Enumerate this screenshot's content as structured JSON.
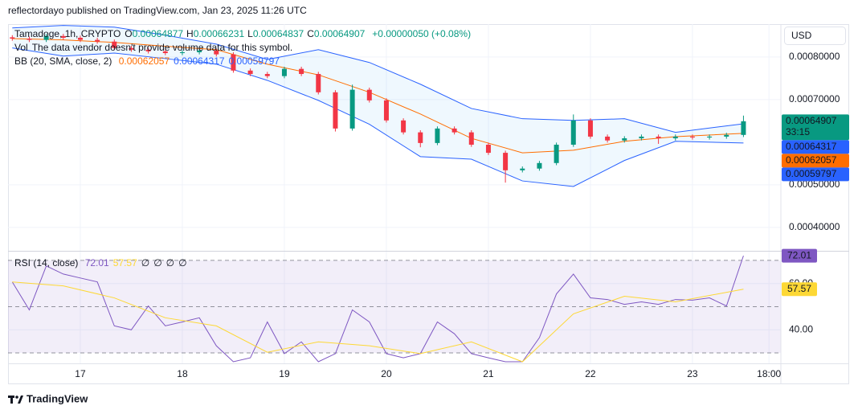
{
  "header": {
    "published": "reflectordayo published on TradingView.com, Jan 23, 2025 11:26 UTC",
    "brand": "TradingView",
    "currency": "USD",
    "countdown": "33:15"
  },
  "chart_data": [
    {
      "type": "candlestick",
      "symbol": "Tamadoge, 1h, CRYPTO",
      "ohlc": [
        {
          "label": "O",
          "value": 0.00064877
        },
        {
          "label": "H",
          "value": 0.00066231
        },
        {
          "label": "L",
          "value": 0.00064837
        },
        {
          "label": "C",
          "value": 0.00064907
        }
      ],
      "change": "+0.00000050 (+0.08%)",
      "volume_label": "Vol",
      "volume_note": "The data vendor doesn't provide volume data for this symbol.",
      "up_color": "#089981",
      "down_color": "#f23645",
      "x": [
        -16,
        -12,
        -8,
        -4,
        0,
        4,
        8,
        12,
        16,
        20,
        24,
        28,
        32,
        36,
        40,
        44,
        48,
        52,
        56,
        60,
        64,
        68,
        72,
        76,
        80,
        84,
        88,
        92,
        96,
        100,
        104,
        108,
        112,
        116,
        120,
        124,
        128,
        132,
        136,
        140,
        144,
        148,
        152,
        156
      ],
      "open": [
        0.000846,
        0.000843,
        0.00084,
        0.000849,
        0.000845,
        0.00084,
        0.000836,
        0.000821,
        0.000817,
        0.000813,
        0.000809,
        0.000811,
        0.000815,
        0.000806,
        0.000768,
        0.00076,
        0.000755,
        0.000772,
        0.00076,
        0.000717,
        0.000632,
        0.000723,
        0.000698,
        0.000651,
        0.000623,
        0.000598,
        0.000632,
        0.000623,
        0.000594,
        0.000575,
        0.000534,
        0.000538,
        0.000551,
        0.000594,
        0.000651,
        0.000613,
        0.000604,
        0.000609,
        0.000613,
        0.000609,
        0.000613,
        0.000611,
        0.000613,
        0.000617
      ],
      "high": [
        0.000851,
        0.000848,
        0.000854,
        0.000854,
        0.00085,
        0.000845,
        0.000841,
        0.000826,
        0.000822,
        0.000818,
        0.000816,
        0.00082,
        0.00082,
        0.000811,
        0.000773,
        0.000765,
        0.000777,
        0.000777,
        0.000765,
        0.000722,
        0.000735,
        0.000728,
        0.000703,
        0.000656,
        0.000628,
        0.000637,
        0.000637,
        0.000628,
        0.000599,
        0.00058,
        0.000543,
        0.000556,
        0.000599,
        0.000665,
        0.000656,
        0.000618,
        0.000614,
        0.000618,
        0.000618,
        0.000618,
        0.000618,
        0.000618,
        0.000622,
        0.00066231
      ],
      "low": [
        0.000838,
        0.000835,
        0.000835,
        0.00084,
        0.000835,
        0.000831,
        0.000816,
        0.000812,
        0.000808,
        0.000804,
        0.000804,
        0.000806,
        0.000801,
        0.000763,
        0.000755,
        0.00075,
        0.00075,
        0.000755,
        0.000712,
        0.000625,
        0.000627,
        0.000693,
        0.000646,
        0.000618,
        0.000588,
        0.000593,
        0.000618,
        0.000589,
        0.00057,
        0.000505,
        0.000529,
        0.000533,
        0.000546,
        0.000589,
        0.000608,
        0.000599,
        0.000599,
        0.000604,
        0.000596,
        0.000604,
        0.000606,
        0.000606,
        0.000608,
        0.000612
      ],
      "close": [
        0.000843,
        0.00084,
        0.000849,
        0.000845,
        0.00084,
        0.000836,
        0.000821,
        0.000817,
        0.000813,
        0.000809,
        0.000811,
        0.000815,
        0.000806,
        0.000768,
        0.00076,
        0.000755,
        0.000772,
        0.00076,
        0.000717,
        0.000632,
        0.000723,
        0.000698,
        0.000651,
        0.000623,
        0.000598,
        0.000632,
        0.000623,
        0.000594,
        0.000575,
        0.000534,
        0.000538,
        0.000551,
        0.000594,
        0.000651,
        0.000613,
        0.000604,
        0.000609,
        0.000613,
        0.000609,
        0.000613,
        0.000611,
        0.000613,
        0.000617,
        0.00064907
      ],
      "bb": {
        "label": "BB (20, SMA, close, 2)",
        "x": [
          -16,
          -4,
          8,
          20,
          32,
          44,
          56,
          68,
          80,
          92,
          104,
          116,
          128,
          140,
          156
        ],
        "basis": [
          0.000843,
          0.00084,
          0.000834,
          0.000825,
          0.000817,
          0.000783,
          0.000758,
          0.000717,
          0.000666,
          0.000609,
          0.000575,
          0.000581,
          0.000602,
          0.000613,
          0.00062057
        ],
        "upper": [
          0.000868,
          0.000874,
          0.00087,
          0.000851,
          0.00083,
          0.000794,
          0.000817,
          0.000787,
          0.000736,
          0.000679,
          0.000655,
          0.000651,
          0.000655,
          0.000623,
          0.00064317
        ],
        "lower": [
          0.000821,
          0.000802,
          0.000809,
          0.000796,
          0.000783,
          0.000745,
          0.000698,
          0.000642,
          0.000566,
          0.00056,
          0.000509,
          0.000496,
          0.000557,
          0.000602,
          0.00059797
        ],
        "basis_color": "#ff6d00",
        "band_color": "#2962ff",
        "fill_color": "#2196f3"
      },
      "xlim": [
        -17,
        164.8
      ],
      "ylim": [
        0.000345,
        0.000877
      ],
      "yticks": [
        {
          "value": 0.0004,
          "label": "0.00040000"
        },
        {
          "value": 0.0005,
          "label": "0.00050000"
        },
        {
          "value": 0.0007,
          "label": "0.00070000"
        },
        {
          "value": 0.0008,
          "label": "0.00080000"
        }
      ],
      "grid": true
    },
    {
      "type": "line",
      "title": "RSI (14, close)",
      "na_values": [
        "∅",
        "∅",
        "∅",
        "∅"
      ],
      "series": [
        {
          "color": "#7e57c2",
          "x": [
            -16,
            -12,
            -8,
            -4,
            0,
            4,
            8,
            12,
            16,
            20,
            24,
            28,
            32,
            36,
            40,
            44,
            48,
            52,
            56,
            60,
            64,
            68,
            72,
            76,
            80,
            84,
            88,
            92,
            96,
            100,
            104,
            108,
            112,
            116,
            120,
            124,
            128,
            132,
            136,
            140,
            144,
            148,
            152,
            156
          ],
          "values": [
            60.7,
            48.6,
            67.6,
            64.1,
            62.4,
            60.7,
            41.7,
            40,
            50.3,
            41.7,
            43.4,
            45.2,
            33.1,
            26.2,
            27.9,
            43.4,
            29.7,
            34.8,
            26.2,
            29.7,
            48.6,
            43.4,
            29.7,
            27.9,
            29.7,
            43.4,
            38.3,
            29.7,
            27.9,
            26.2,
            26.2,
            36.6,
            55.5,
            64.1,
            53.8,
            53.1,
            51,
            52.1,
            51,
            53.1,
            52.8,
            53.8,
            50.3,
            72.01
          ]
        },
        {
          "color": "#fdd835",
          "x": [
            -16,
            -4,
            8,
            20,
            32,
            44,
            56,
            68,
            80,
            92,
            104,
            116,
            128,
            140,
            156
          ],
          "values": [
            60.7,
            59,
            53.8,
            45.2,
            41.7,
            30.3,
            34.8,
            33.1,
            29.7,
            34.8,
            26.2,
            46.9,
            54.5,
            52.1,
            57.57
          ]
        }
      ],
      "levels": [
        70,
        50,
        30
      ],
      "band_color": "#7e57c2",
      "xlim": [
        -17,
        164.8
      ],
      "ylim": [
        25.5,
        73.8
      ],
      "yticks": [
        {
          "value": 40,
          "label": "40.00"
        },
        {
          "value": 60,
          "label": "60.00"
        }
      ],
      "xticks": [
        {
          "value": 0,
          "label": "17"
        },
        {
          "value": 24,
          "label": "18"
        },
        {
          "value": 48,
          "label": "19"
        },
        {
          "value": 72,
          "label": "20"
        },
        {
          "value": 96,
          "label": "21"
        },
        {
          "value": 120,
          "label": "22"
        },
        {
          "value": 144,
          "label": "23"
        },
        {
          "value": 162,
          "label": "18:00"
        }
      ],
      "grid": true
    }
  ]
}
